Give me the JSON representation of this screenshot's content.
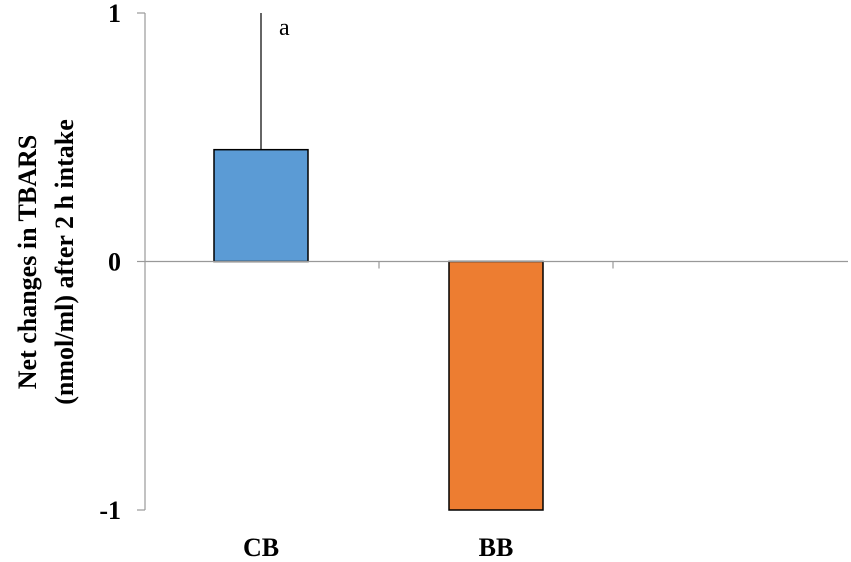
{
  "chart_data": {
    "type": "bar",
    "categories": [
      "CB",
      "BB"
    ],
    "values": [
      0.45,
      -1.0
    ],
    "error_upper": [
      1.0,
      null
    ],
    "colors": [
      "#5B9BD5",
      "#ED7D31"
    ],
    "annotations": [
      "a",
      ""
    ],
    "ylabel_line1": "Net changes in TBARS",
    "ylabel_line2": "(nmol/ml)  after 2 h intake",
    "ylim": [
      -1,
      1
    ],
    "yticks": [
      "1",
      "0",
      "-1"
    ],
    "grid": false
  }
}
